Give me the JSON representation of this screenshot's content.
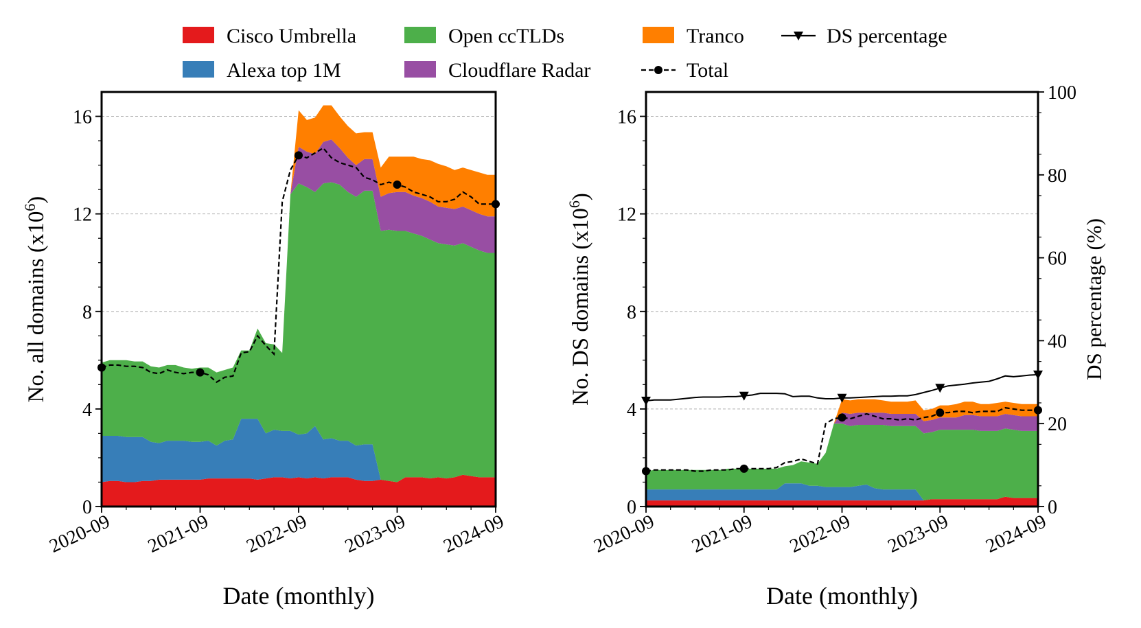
{
  "chart_data": [
    {
      "type": "area",
      "stacked": true,
      "panel": "left",
      "xlabel": "Date (monthly)",
      "ylabel": "No. all domains (x10",
      "ylabel_sup": "6",
      "ylabel_close": ")",
      "ylim": [
        0,
        17
      ],
      "yticks": [
        0,
        4,
        8,
        12,
        16
      ],
      "ytick_labels": [
        "0",
        "4",
        "8",
        "12",
        "16"
      ],
      "xlim": [
        0,
        48
      ],
      "xticks": [
        0,
        12,
        24,
        36,
        48
      ],
      "xtick_labels": [
        "2020-09",
        "2021-09",
        "2022-09",
        "2023-09",
        "2024-09"
      ],
      "grid": "horizontal dashed",
      "series": [
        {
          "name": "Cisco Umbrella",
          "color": "#e41a1c",
          "values": [
            1.0,
            1.05,
            1.05,
            1.0,
            1.0,
            1.05,
            1.05,
            1.1,
            1.1,
            1.1,
            1.1,
            1.1,
            1.1,
            1.15,
            1.15,
            1.15,
            1.15,
            1.15,
            1.15,
            1.1,
            1.15,
            1.2,
            1.2,
            1.15,
            1.2,
            1.15,
            1.2,
            1.15,
            1.2,
            1.2,
            1.2,
            1.1,
            1.05,
            1.05,
            1.1,
            1.05,
            1.0,
            1.2,
            1.2,
            1.2,
            1.15,
            1.2,
            1.15,
            1.2,
            1.3,
            1.25,
            1.2,
            1.2,
            1.2
          ]
        },
        {
          "name": "Alexa top 1M",
          "color": "#377eb8",
          "values": [
            1.9,
            1.85,
            1.85,
            1.85,
            1.85,
            1.8,
            1.6,
            1.5,
            1.6,
            1.6,
            1.6,
            1.55,
            1.55,
            1.55,
            1.35,
            1.55,
            1.6,
            2.45,
            2.45,
            2.5,
            1.85,
            1.95,
            1.9,
            1.95,
            1.75,
            1.85,
            2.1,
            1.6,
            1.6,
            1.5,
            1.5,
            1.4,
            1.5,
            1.5,
            0,
            0,
            0,
            0,
            0,
            0,
            0,
            0,
            0,
            0,
            0,
            0,
            0,
            0,
            0
          ]
        },
        {
          "name": "Open ccTLDs",
          "color": "#4daf4a",
          "values": [
            3.0,
            3.1,
            3.1,
            3.15,
            3.1,
            3.1,
            3.1,
            3.1,
            3.1,
            3.1,
            3.0,
            3.0,
            3.05,
            3.0,
            3.0,
            2.9,
            2.95,
            2.8,
            2.8,
            3.7,
            3.7,
            3.5,
            3.2,
            9.7,
            10.3,
            10.1,
            9.6,
            10.5,
            10.5,
            10.5,
            10.2,
            10.2,
            10.4,
            10.4,
            10.2,
            10.3,
            10.3,
            10.1,
            10.0,
            9.9,
            9.8,
            9.6,
            9.6,
            9.5,
            9.5,
            9.4,
            9.3,
            9.2,
            9.2
          ]
        },
        {
          "name": "Cloudflare Radar",
          "color": "#984ea3",
          "values": [
            0,
            0,
            0,
            0,
            0,
            0,
            0,
            0,
            0,
            0,
            0,
            0,
            0,
            0,
            0,
            0,
            0,
            0,
            0,
            0,
            0,
            0,
            0,
            0,
            1.5,
            1.45,
            1.55,
            1.7,
            1.75,
            1.5,
            1.4,
            1.3,
            1.3,
            1.3,
            1.4,
            1.5,
            1.6,
            1.6,
            1.55,
            1.55,
            1.55,
            1.5,
            1.5,
            1.5,
            1.5,
            1.5,
            1.5,
            1.5,
            1.5
          ]
        },
        {
          "name": "Tranco",
          "color": "#ff7f00",
          "values": [
            0,
            0,
            0,
            0,
            0,
            0,
            0,
            0,
            0,
            0,
            0,
            0,
            0,
            0,
            0,
            0,
            0,
            0,
            0,
            0,
            0,
            0,
            0,
            0,
            1.5,
            1.3,
            1.5,
            1.5,
            1.4,
            1.3,
            1.3,
            1.3,
            1.1,
            1.1,
            1.2,
            1.5,
            1.45,
            1.45,
            1.6,
            1.6,
            1.7,
            1.75,
            1.7,
            1.6,
            1.6,
            1.65,
            1.7,
            1.7,
            1.7
          ]
        }
      ],
      "total": {
        "name": "Total",
        "style": "dashed, circle markers",
        "values": [
          5.7,
          5.8,
          5.8,
          5.75,
          5.75,
          5.7,
          5.5,
          5.45,
          5.6,
          5.5,
          5.45,
          5.5,
          5.5,
          5.4,
          5.1,
          5.3,
          5.35,
          6.3,
          6.35,
          7.0,
          6.6,
          6.25,
          12.5,
          13.8,
          14.4,
          14.3,
          14.5,
          14.7,
          14.3,
          14.1,
          14.0,
          13.9,
          13.5,
          13.4,
          13.2,
          13.3,
          13.2,
          13.1,
          12.9,
          12.8,
          12.7,
          12.5,
          12.5,
          12.6,
          12.9,
          12.7,
          12.4,
          12.4,
          12.4
        ],
        "marker_x": [
          0,
          12,
          24,
          36,
          48
        ]
      }
    },
    {
      "type": "area",
      "stacked": true,
      "panel": "right",
      "xlabel": "Date (monthly)",
      "ylabel": "No. DS domains (x10",
      "ylabel_sup": "6",
      "ylabel_close": ")",
      "ylabel_right": "DS percentage (%)",
      "ylim": [
        0,
        17
      ],
      "yticks": [
        0,
        4,
        8,
        12,
        16
      ],
      "ytick_labels": [
        "0",
        "4",
        "8",
        "12",
        "16"
      ],
      "y2lim": [
        0,
        100
      ],
      "y2ticks": [
        0,
        20,
        40,
        60,
        80,
        100
      ],
      "y2tick_labels": [
        "0",
        "20",
        "40",
        "60",
        "80",
        "100"
      ],
      "xlim": [
        0,
        48
      ],
      "xticks": [
        0,
        12,
        24,
        36,
        48
      ],
      "xtick_labels": [
        "2020-09",
        "2021-09",
        "2022-09",
        "2023-09",
        "2024-09"
      ],
      "grid": "horizontal dashed",
      "series": [
        {
          "name": "Cisco Umbrella",
          "color": "#e41a1c",
          "values": [
            0.25,
            0.25,
            0.25,
            0.25,
            0.25,
            0.25,
            0.25,
            0.25,
            0.25,
            0.25,
            0.25,
            0.25,
            0.25,
            0.25,
            0.25,
            0.25,
            0.25,
            0.25,
            0.25,
            0.25,
            0.25,
            0.25,
            0.25,
            0.25,
            0.25,
            0.25,
            0.25,
            0.25,
            0.25,
            0.25,
            0.25,
            0.25,
            0.25,
            0.25,
            0.25,
            0.3,
            0.3,
            0.3,
            0.3,
            0.3,
            0.3,
            0.3,
            0.3,
            0.3,
            0.4,
            0.35,
            0.35,
            0.35,
            0.35
          ]
        },
        {
          "name": "Alexa top 1M",
          "color": "#377eb8",
          "values": [
            0.45,
            0.45,
            0.45,
            0.45,
            0.45,
            0.45,
            0.45,
            0.45,
            0.45,
            0.45,
            0.45,
            0.45,
            0.45,
            0.45,
            0.45,
            0.45,
            0.45,
            0.7,
            0.7,
            0.7,
            0.6,
            0.6,
            0.55,
            0.55,
            0.55,
            0.55,
            0.6,
            0.65,
            0.5,
            0.45,
            0.45,
            0.45,
            0.45,
            0.45,
            0,
            0,
            0,
            0,
            0,
            0,
            0,
            0,
            0,
            0,
            0,
            0,
            0,
            0,
            0
          ]
        },
        {
          "name": "Open ccTLDs",
          "color": "#4daf4a",
          "values": [
            0.75,
            0.8,
            0.8,
            0.8,
            0.8,
            0.8,
            0.8,
            0.8,
            0.8,
            0.8,
            0.85,
            0.85,
            0.85,
            0.85,
            0.85,
            0.85,
            0.85,
            0.7,
            0.75,
            0.9,
            0.95,
            0.9,
            1.4,
            2.6,
            2.6,
            2.5,
            2.5,
            2.45,
            2.6,
            2.65,
            2.6,
            2.6,
            2.6,
            2.6,
            2.75,
            2.75,
            2.85,
            2.85,
            2.85,
            2.85,
            2.85,
            2.8,
            2.8,
            2.8,
            2.8,
            2.8,
            2.75,
            2.75,
            2.75
          ]
        },
        {
          "name": "Cloudflare Radar",
          "color": "#984ea3",
          "values": [
            0,
            0,
            0,
            0,
            0,
            0,
            0,
            0,
            0,
            0,
            0,
            0,
            0,
            0,
            0,
            0,
            0,
            0,
            0,
            0,
            0,
            0,
            0,
            0,
            0.45,
            0.5,
            0.5,
            0.5,
            0.5,
            0.5,
            0.5,
            0.5,
            0.5,
            0.5,
            0.5,
            0.5,
            0.5,
            0.5,
            0.5,
            0.6,
            0.6,
            0.6,
            0.6,
            0.6,
            0.6,
            0.6,
            0.6,
            0.6,
            0.6
          ]
        },
        {
          "name": "Tranco",
          "color": "#ff7f00",
          "values": [
            0,
            0,
            0,
            0,
            0,
            0,
            0,
            0,
            0,
            0,
            0,
            0,
            0,
            0,
            0,
            0,
            0,
            0,
            0,
            0,
            0,
            0,
            0,
            0,
            0.55,
            0.55,
            0.55,
            0.55,
            0.55,
            0.5,
            0.5,
            0.5,
            0.5,
            0.55,
            0.45,
            0.45,
            0.5,
            0.5,
            0.55,
            0.55,
            0.55,
            0.5,
            0.5,
            0.55,
            0.5,
            0.5,
            0.5,
            0.5,
            0.5
          ]
        }
      ],
      "total": {
        "name": "Total",
        "style": "dashed, circle markers",
        "values": [
          1.45,
          1.5,
          1.5,
          1.5,
          1.5,
          1.5,
          1.45,
          1.45,
          1.5,
          1.5,
          1.5,
          1.55,
          1.55,
          1.55,
          1.55,
          1.55,
          1.6,
          1.8,
          1.85,
          1.95,
          1.85,
          1.75,
          3.4,
          3.6,
          3.65,
          3.6,
          3.7,
          3.8,
          3.7,
          3.6,
          3.6,
          3.55,
          3.6,
          3.55,
          3.65,
          3.7,
          3.85,
          3.85,
          3.9,
          3.9,
          3.85,
          3.9,
          3.9,
          3.9,
          4.05,
          4.0,
          3.95,
          3.95,
          3.95
        ],
        "marker_x": [
          0,
          12,
          24,
          36,
          48
        ]
      },
      "ds_percentage": {
        "name": "DS percentage",
        "style": "solid, down-triangle markers",
        "axis": "right",
        "values": [
          25.5,
          25.7,
          25.7,
          25.7,
          25.9,
          26.1,
          26.3,
          26.4,
          26.4,
          26.4,
          26.5,
          26.5,
          26.7,
          26.9,
          27.3,
          27.3,
          27.3,
          27.2,
          26.5,
          26.6,
          26.6,
          26.2,
          26.0,
          26.0,
          26.2,
          26.2,
          26.3,
          26.4,
          26.5,
          26.6,
          26.6,
          26.7,
          26.7,
          27.0,
          27.5,
          28.0,
          28.6,
          29.1,
          29.3,
          29.5,
          29.8,
          30.0,
          30.2,
          30.8,
          31.5,
          31.3,
          31.5,
          31.7,
          31.8
        ],
        "marker_x": [
          0,
          12,
          24,
          36,
          48
        ]
      }
    }
  ],
  "legend": {
    "placement": "top-center",
    "entries": [
      {
        "label": "Cisco Umbrella",
        "kind": "patch",
        "color": "#e41a1c"
      },
      {
        "label": "Alexa top 1M",
        "kind": "patch",
        "color": "#377eb8"
      },
      {
        "label": "Open ccTLDs",
        "kind": "patch",
        "color": "#4daf4a"
      },
      {
        "label": "Cloudflare Radar",
        "kind": "patch",
        "color": "#984ea3"
      },
      {
        "label": "Tranco",
        "kind": "patch",
        "color": "#ff7f00"
      },
      {
        "label": "Total",
        "kind": "dashed-dot"
      },
      {
        "label": "DS percentage",
        "kind": "solid-triangle"
      }
    ]
  }
}
